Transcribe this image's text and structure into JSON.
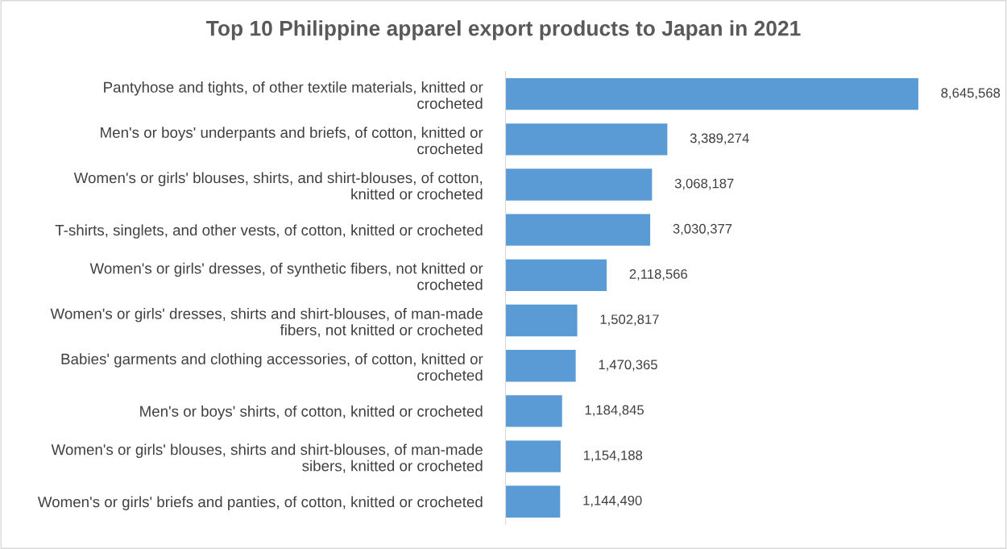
{
  "chart_data": {
    "type": "bar",
    "orientation": "horizontal",
    "title": "Top 10 Philippine apparel export products to Japan in 2021",
    "categories": [
      "Pantyhose and tights, of other textile materials, knitted or\ncrocheted",
      "Men's or boys' underpants and briefs, of cotton, knitted or\ncrocheted",
      "Women's or girls' blouses, shirts, and shirt-blouses, of cotton,\nknitted or crocheted",
      "T-shirts, singlets, and other vests, of cotton, knitted or crocheted",
      "Women's or girls' dresses, of synthetic fibers, not knitted or\ncrocheted",
      "Women's or girls' dresses, shirts and shirt-blouses, of man-made\nfibers, not knitted or crocheted",
      "Babies' garments and clothing accessories, of cotton, knitted or\ncrocheted",
      "Men's or boys' shirts, of cotton, knitted or crocheted",
      "Women's or girls' blouses, shirts and shirt-blouses, of man-made\nsibers, knitted or crocheted",
      "Women's or girls' briefs and panties, of cotton, knitted or crocheted"
    ],
    "values": [
      8645568,
      3389274,
      3068187,
      3030377,
      2118566,
      1502817,
      1470365,
      1184845,
      1154188,
      1144490
    ],
    "value_labels": [
      "8,645,568",
      "3,389,274",
      "3,068,187",
      "3,030,377",
      "2,118,566",
      "1,502,817",
      "1,470,365",
      "1,184,845",
      "1,154,188",
      "1,144,490"
    ],
    "color": "#5b9bd5",
    "grid": false,
    "legend": false
  }
}
